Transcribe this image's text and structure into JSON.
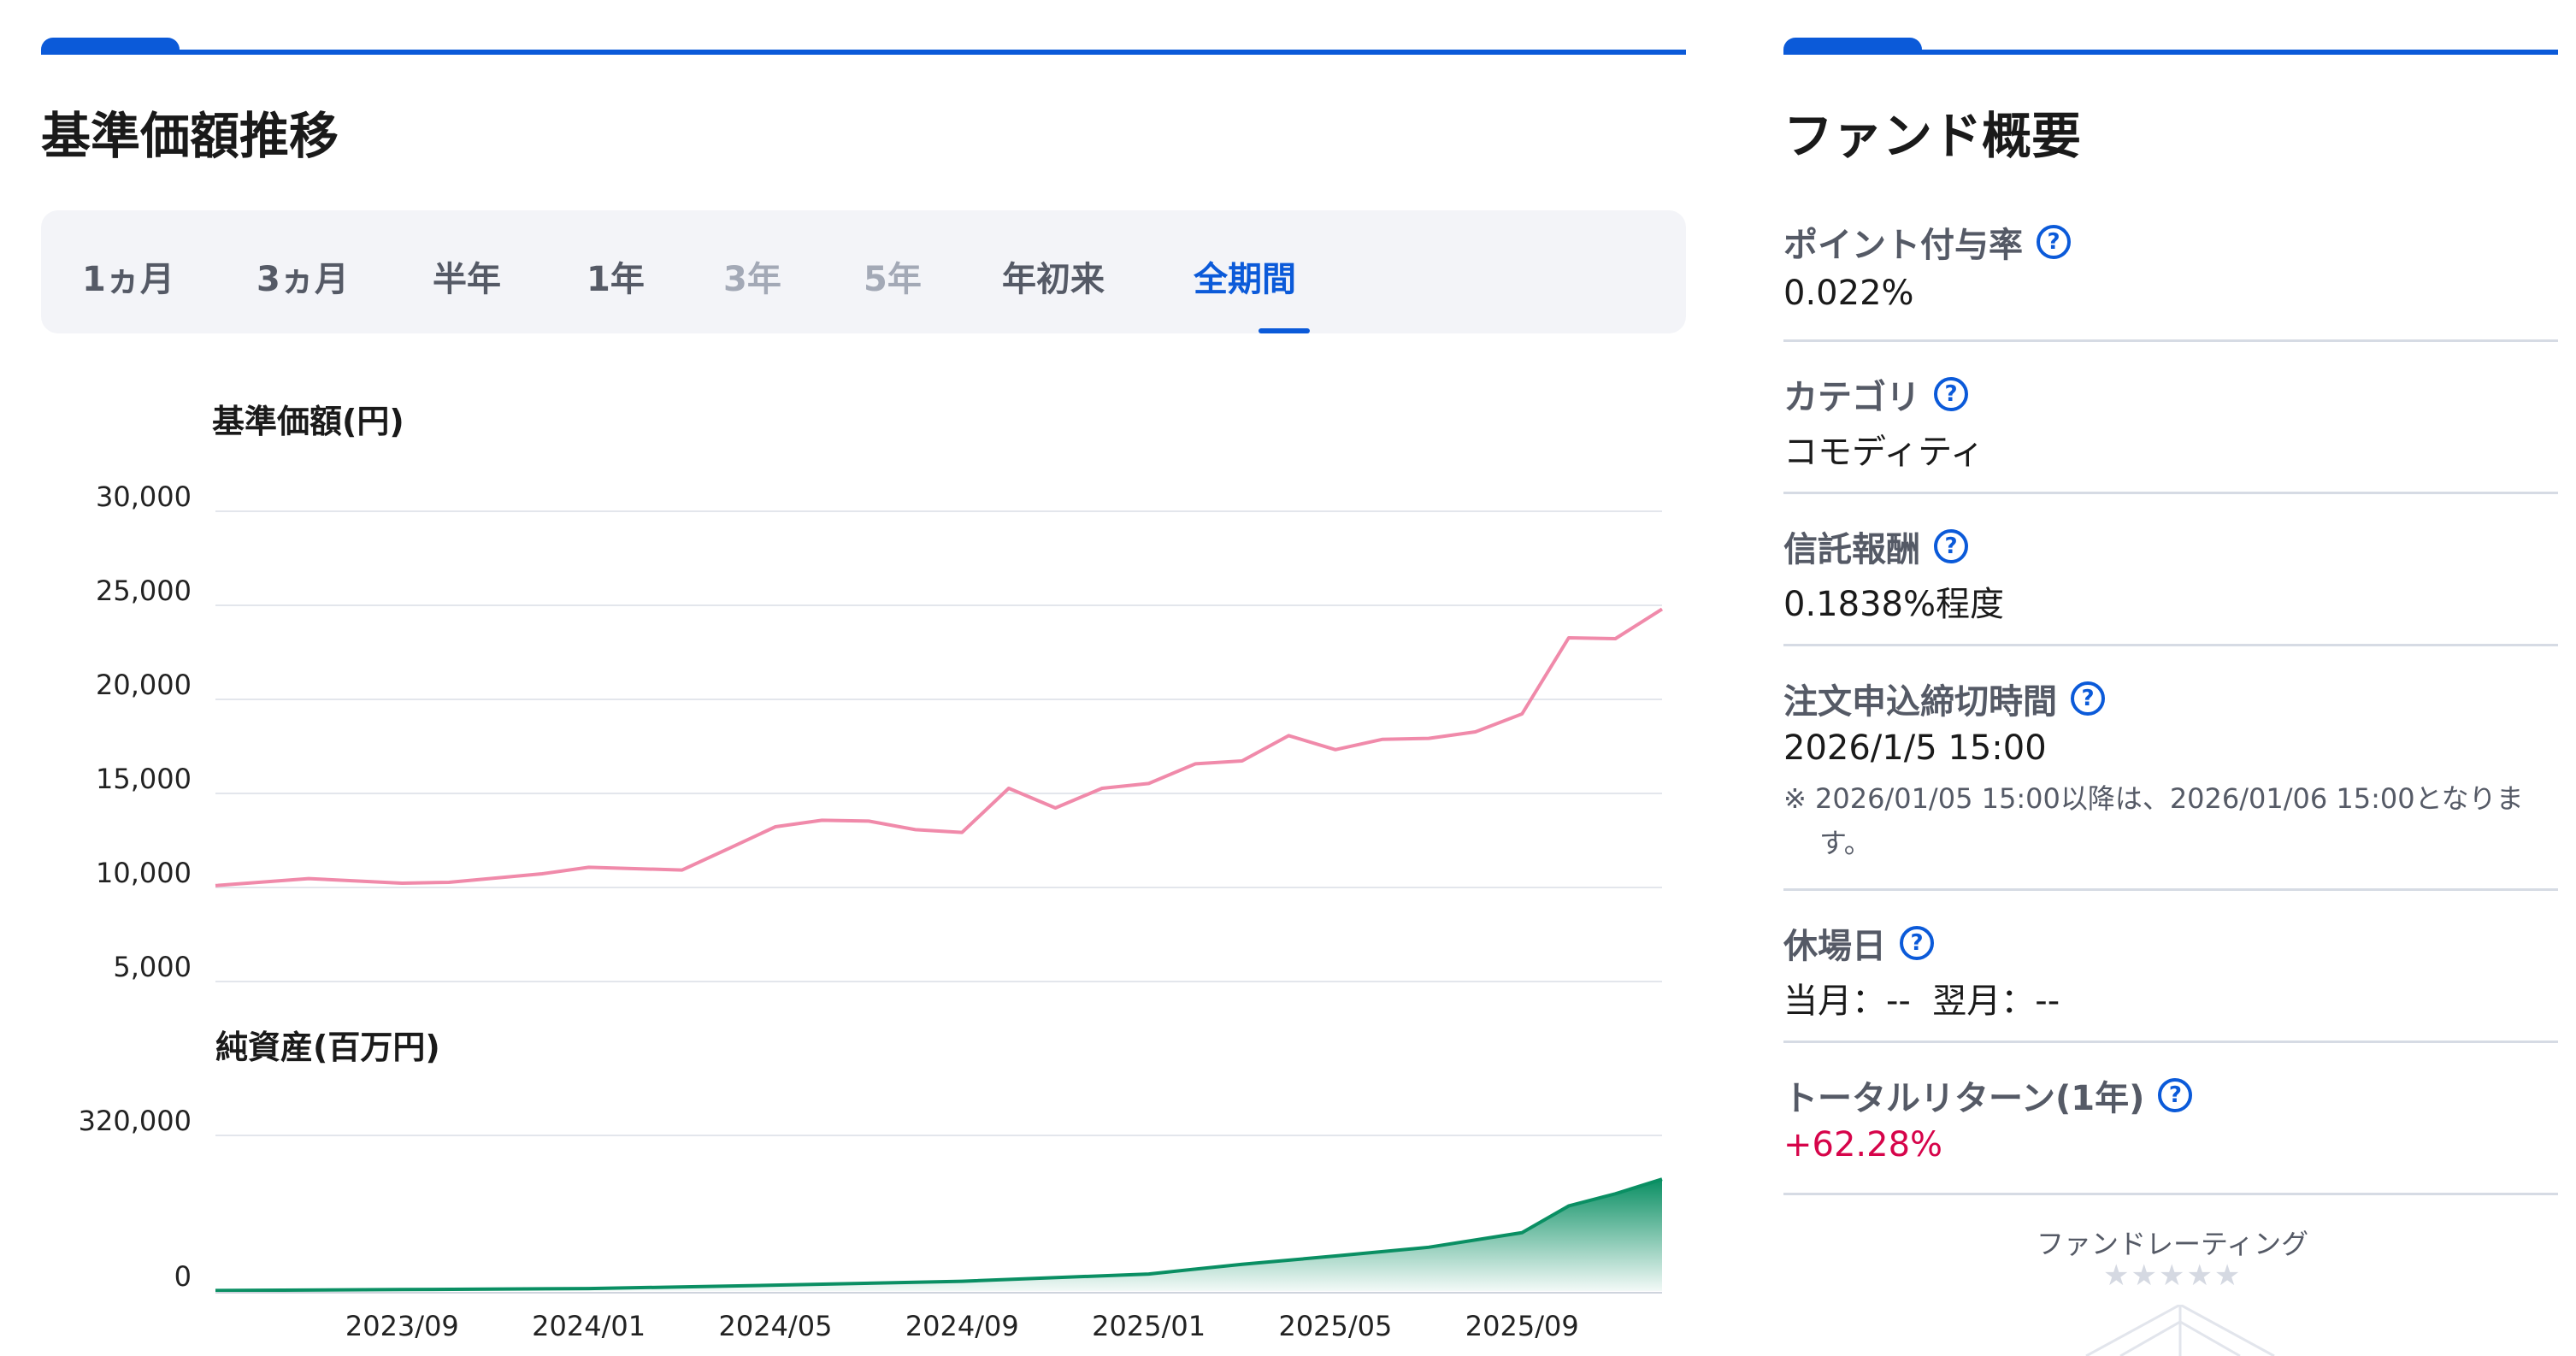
{
  "left_section": {
    "title": "基準価額推移"
  },
  "tabs": [
    {
      "label": "1ヵ月",
      "state": "normal"
    },
    {
      "label": "3ヵ月",
      "state": "normal"
    },
    {
      "label": "半年",
      "state": "normal"
    },
    {
      "label": "1年",
      "state": "normal"
    },
    {
      "label": "3年",
      "state": "disabled"
    },
    {
      "label": "5年",
      "state": "disabled"
    },
    {
      "label": "年初来",
      "state": "normal"
    },
    {
      "label": "全期間",
      "state": "active"
    }
  ],
  "chart_data": [
    {
      "type": "line",
      "ylabel": "基準価額(円)",
      "ylim": [
        5000,
        30000
      ],
      "yticks": [
        "30,000",
        "25,000",
        "20,000",
        "15,000",
        "10,000",
        "5,000"
      ],
      "x_range": [
        "2023-05",
        "2025-12"
      ],
      "series": [
        {
          "color": "#f08aaa",
          "x": [
            "2023-05",
            "2023-07",
            "2023-09",
            "2023-10",
            "2023-12",
            "2024-01",
            "2024-03",
            "2024-04",
            "2024-05",
            "2024-06",
            "2024-07",
            "2024-08",
            "2024-09",
            "2024-10",
            "2024-11",
            "2024-12",
            "2025-01",
            "2025-02",
            "2025-03",
            "2025-04",
            "2025-05",
            "2025-06",
            "2025-07",
            "2025-08",
            "2025-09",
            "2025-10",
            "2025-11",
            "2025-12"
          ],
          "values": [
            10100,
            10200,
            10500,
            10000,
            11000,
            10800,
            11200,
            11800,
            13500,
            13300,
            13800,
            12800,
            13200,
            15000,
            14500,
            15000,
            15800,
            16300,
            17000,
            17800,
            17600,
            17600,
            18200,
            18000,
            19500,
            23000,
            23500,
            24800
          ]
        }
      ]
    },
    {
      "type": "area",
      "ylabel": "純資産(百万円)",
      "yticks": [
        "320,000",
        "0"
      ],
      "ylim": [
        0,
        320000
      ],
      "xticks": [
        "2023/09",
        "2024/01",
        "2024/05",
        "2024/09",
        "2025/01",
        "2025/05",
        "2025/09"
      ],
      "series": [
        {
          "color": "#0a8f63",
          "x": [
            "2023-05",
            "2023-09",
            "2024-01",
            "2024-05",
            "2024-09",
            "2025-01",
            "2025-03",
            "2025-05",
            "2025-07",
            "2025-09",
            "2025-10",
            "2025-11",
            "2025-12"
          ],
          "values": [
            1000,
            3000,
            5000,
            12000,
            20000,
            35000,
            55000,
            72000,
            90000,
            120000,
            175000,
            200000,
            230000
          ]
        }
      ]
    }
  ],
  "right_section": {
    "title": "ファンド概要",
    "items": [
      {
        "label": "ポイント付与率",
        "value": "0.022%"
      },
      {
        "label": "カテゴリ",
        "value": "コモディティ"
      },
      {
        "label": "信託報酬",
        "value": "0.1838%程度"
      },
      {
        "label": "注文申込締切時間",
        "value": "2026/1/5 15:00",
        "note": "※ 2026/01/05 15:00以降は、2026/01/06 15:00となります。"
      },
      {
        "label": "休場日",
        "value": "当月：--  翌月：--"
      },
      {
        "label": "トータルリターン(1年)",
        "value": "+62.28%"
      }
    ],
    "rating_label": "ファンドレーティング",
    "rating_stars": "★★★★★"
  },
  "colors": {
    "accent": "#0b5ad9",
    "price_line": "#f08aaa",
    "net_assets": "#0a8f63",
    "positive": "#d6044a"
  }
}
